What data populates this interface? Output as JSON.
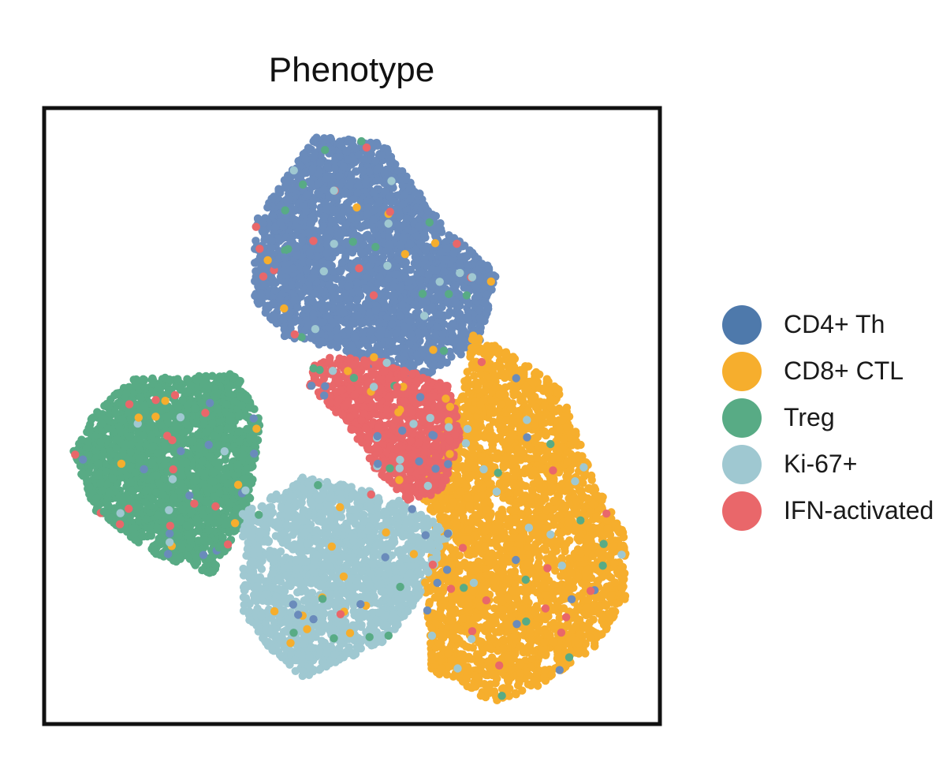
{
  "chart_data": {
    "type": "scatter",
    "title": "Phenotype",
    "xlabel": "",
    "ylabel": "",
    "axes_ticks": false,
    "grid": false,
    "legend_position": "right",
    "categories": [
      "CD4+ Th",
      "CD8+ CTL",
      "Treg",
      "Ki-67+",
      "IFN-activated"
    ],
    "colors": {
      "CD4+ Th": "#6a8bbb",
      "CD8+ CTL": "#f6ae2d",
      "Treg": "#58ab85",
      "Ki-67+": "#9fc8d1",
      "IFN-activated": "#e9676a"
    },
    "legend_colors": {
      "CD4+ Th": "#4e79ab",
      "CD8+ CTL": "#f6ae2d",
      "Treg": "#58ab85",
      "Ki-67+": "#9fc8d1",
      "IFN-activated": "#e9676a"
    },
    "clusters": [
      {
        "name": "CD4+ Th",
        "polygon": [
          [
            0.44,
            0.04
          ],
          [
            0.55,
            0.05
          ],
          [
            0.66,
            0.2
          ],
          [
            0.74,
            0.26
          ],
          [
            0.71,
            0.38
          ],
          [
            0.6,
            0.45
          ],
          [
            0.48,
            0.39
          ],
          [
            0.39,
            0.37
          ],
          [
            0.34,
            0.31
          ],
          [
            0.34,
            0.18
          ]
        ],
        "n": 2800
      },
      {
        "name": "CD8+ CTL",
        "polygon": [
          [
            0.7,
            0.36
          ],
          [
            0.84,
            0.45
          ],
          [
            0.9,
            0.61
          ],
          [
            0.95,
            0.69
          ],
          [
            0.95,
            0.8
          ],
          [
            0.9,
            0.88
          ],
          [
            0.8,
            0.95
          ],
          [
            0.73,
            0.97
          ],
          [
            0.63,
            0.92
          ],
          [
            0.62,
            0.79
          ],
          [
            0.64,
            0.67
          ],
          [
            0.6,
            0.62
          ],
          [
            0.68,
            0.46
          ]
        ],
        "n": 2900
      },
      {
        "name": "Treg",
        "polygon": [
          [
            0.14,
            0.44
          ],
          [
            0.31,
            0.43
          ],
          [
            0.35,
            0.51
          ],
          [
            0.33,
            0.66
          ],
          [
            0.27,
            0.76
          ],
          [
            0.18,
            0.73
          ],
          [
            0.08,
            0.66
          ],
          [
            0.04,
            0.56
          ],
          [
            0.08,
            0.49
          ]
        ],
        "n": 2300
      },
      {
        "name": "Ki-67+",
        "polygon": [
          [
            0.32,
            0.66
          ],
          [
            0.42,
            0.6
          ],
          [
            0.52,
            0.62
          ],
          [
            0.58,
            0.64
          ],
          [
            0.66,
            0.69
          ],
          [
            0.62,
            0.78
          ],
          [
            0.57,
            0.86
          ],
          [
            0.5,
            0.9
          ],
          [
            0.42,
            0.93
          ],
          [
            0.37,
            0.89
          ],
          [
            0.32,
            0.82
          ]
        ],
        "n": 1800
      },
      {
        "name": "IFN-activated",
        "polygon": [
          [
            0.44,
            0.4
          ],
          [
            0.55,
            0.41
          ],
          [
            0.66,
            0.45
          ],
          [
            0.68,
            0.53
          ],
          [
            0.65,
            0.62
          ],
          [
            0.59,
            0.64
          ],
          [
            0.54,
            0.59
          ],
          [
            0.49,
            0.51
          ],
          [
            0.43,
            0.45
          ]
        ],
        "n": 1000
      }
    ],
    "xlim": [
      0,
      1
    ],
    "ylim": [
      0,
      1
    ]
  }
}
